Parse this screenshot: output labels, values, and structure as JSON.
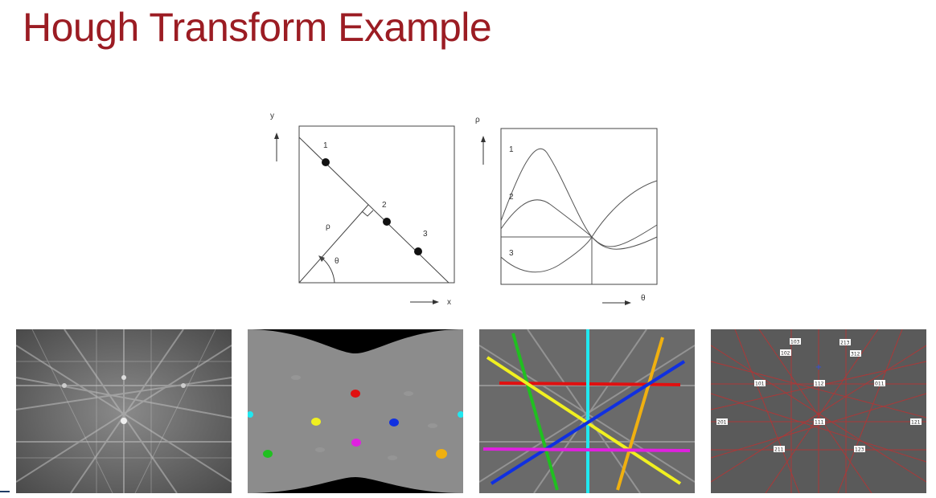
{
  "slide": {
    "title": "Hough Transform Example"
  },
  "image_space": {
    "y_axis_label": "y",
    "x_axis_label": "x",
    "rho_label": "ρ",
    "theta_label": "θ",
    "points": [
      {
        "label": "1"
      },
      {
        "label": "2"
      },
      {
        "label": "3"
      }
    ]
  },
  "parameter_space": {
    "y_axis_label": "ρ",
    "x_axis_label": "θ",
    "curve_labels": [
      "1",
      "2",
      "3"
    ]
  },
  "ebsd_panels": {
    "colors": {
      "red": "#e01010",
      "yellow": "#f0f020",
      "blue": "#1030e0",
      "cyan": "#20e8f0",
      "magenta": "#e020e0",
      "green": "#20c020",
      "orange": "#f0b010"
    },
    "indexed_labels": [
      "103",
      "213",
      "102",
      "312",
      "101",
      "112",
      "011",
      "111",
      "201",
      "121",
      "211",
      "123"
    ]
  }
}
